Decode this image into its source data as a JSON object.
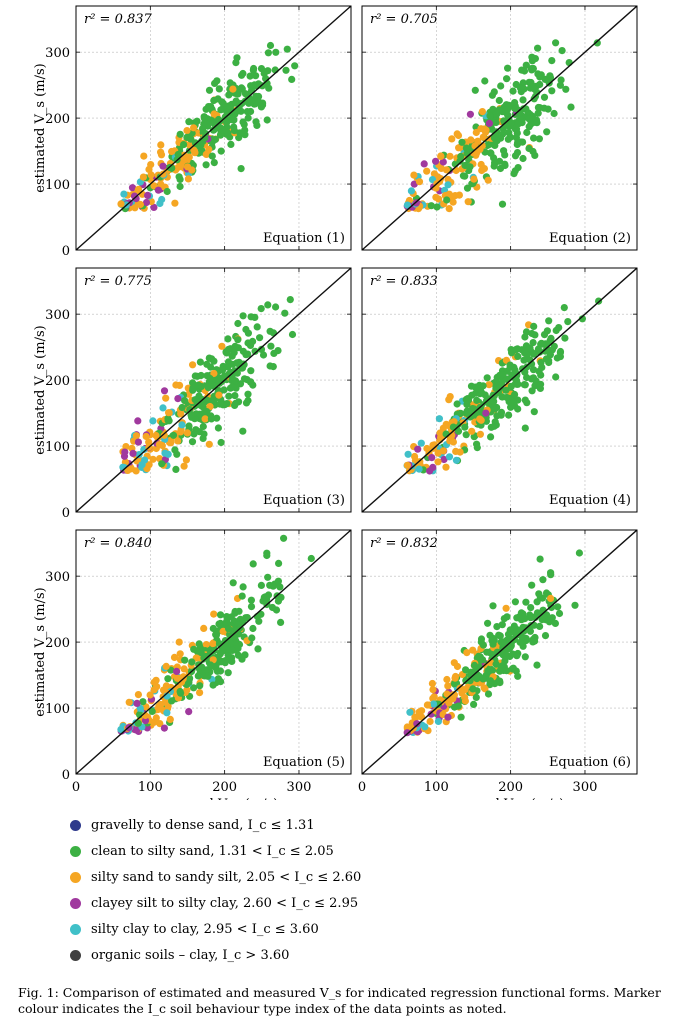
{
  "figure": {
    "caption": "Fig. 1: Comparison of estimated and measured V_s for indicated regression functional forms. Marker colour indicates the I_c soil behaviour type index of the data points as noted.",
    "ylabel": "estimated V_s (m/s)",
    "xlabel": "measured V_s (m/s)"
  },
  "legend": [
    {
      "label": "gravelly to dense sand, I_c ≤ 1.31",
      "color": "#2e3a8c"
    },
    {
      "label": "clean to silty sand, 1.31 < I_c ≤ 2.05",
      "color": "#3cb043"
    },
    {
      "label": "silty sand to sandy silt, 2.05 < I_c ≤ 2.60",
      "color": "#f5a623"
    },
    {
      "label": "clayey silt to silty clay, 2.60 < I_c ≤ 2.95",
      "color": "#a0399e"
    },
    {
      "label": "silty clay to clay, 2.95 < I_c ≤ 3.60",
      "color": "#40c0c8"
    },
    {
      "label": "organic soils – clay, I_c > 3.60",
      "color": "#404040"
    }
  ],
  "chart_data": [
    {
      "type": "scatter",
      "title": "Equation (1)",
      "r2_label": "r² = 0.837",
      "r2": 0.837,
      "spread": 22,
      "xlim": [
        0,
        370
      ],
      "ylim": [
        0,
        370
      ],
      "xticks": [
        0,
        100,
        200,
        300
      ],
      "yticks": [
        0,
        100,
        200,
        300
      ],
      "reference_line": "y = x"
    },
    {
      "type": "scatter",
      "title": "Equation (2)",
      "r2_label": "r² = 0.705",
      "r2": 0.705,
      "spread": 32,
      "xlim": [
        0,
        370
      ],
      "ylim": [
        0,
        370
      ],
      "xticks": [
        0,
        100,
        200,
        300
      ],
      "yticks": [
        0,
        100,
        200,
        300
      ],
      "reference_line": "y = x"
    },
    {
      "type": "scatter",
      "title": "Equation (3)",
      "r2_label": "r² = 0.775",
      "r2": 0.775,
      "spread": 26,
      "xlim": [
        0,
        370
      ],
      "ylim": [
        0,
        370
      ],
      "xticks": [
        0,
        100,
        200,
        300
      ],
      "yticks": [
        0,
        100,
        200,
        300
      ],
      "reference_line": "y = x"
    },
    {
      "type": "scatter",
      "title": "Equation (4)",
      "r2_label": "r² = 0.833",
      "r2": 0.833,
      "spread": 22,
      "xlim": [
        0,
        370
      ],
      "ylim": [
        0,
        370
      ],
      "xticks": [
        0,
        100,
        200,
        300
      ],
      "yticks": [
        0,
        100,
        200,
        300
      ],
      "reference_line": "y = x"
    },
    {
      "type": "scatter",
      "title": "Equation (5)",
      "r2_label": "r² = 0.840",
      "r2": 0.84,
      "spread": 21,
      "xlim": [
        0,
        370
      ],
      "ylim": [
        0,
        370
      ],
      "xticks": [
        0,
        100,
        200,
        300
      ],
      "yticks": [
        0,
        100,
        200,
        300
      ],
      "reference_line": "y = x"
    },
    {
      "type": "scatter",
      "title": "Equation (6)",
      "r2_label": "r² = 0.832",
      "r2": 0.832,
      "spread": 22,
      "xlim": [
        0,
        370
      ],
      "ylim": [
        0,
        370
      ],
      "xticks": [
        0,
        100,
        200,
        300
      ],
      "yticks": [
        0,
        100,
        200,
        300
      ],
      "reference_line": "y = x"
    }
  ]
}
